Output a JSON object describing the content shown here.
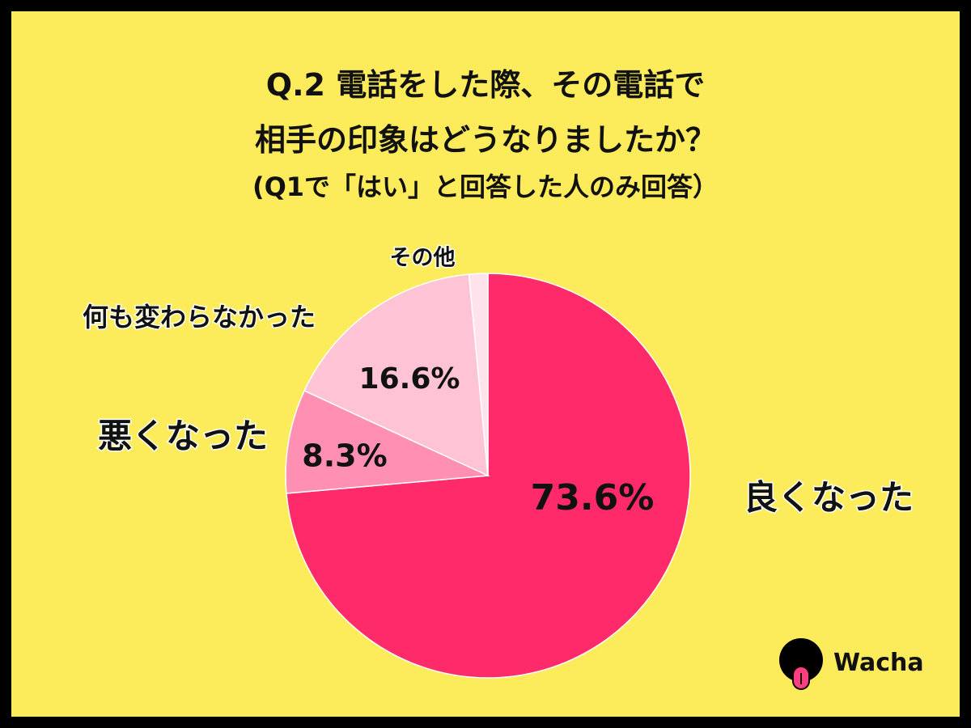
{
  "title": {
    "line1": "Q.2 電話をした際、その電話で",
    "line2": "相手の印象はどうなりましたか？",
    "line3": "(Q1で「はい」と回答した人のみ回答）"
  },
  "chart_data": {
    "type": "pie",
    "categories": [
      "良くなった",
      "悪くなった",
      "何も変わらなかった",
      "その他"
    ],
    "values": [
      73.6,
      8.3,
      16.6,
      1.5
    ],
    "value_labels": [
      "73.6%",
      "8.3%",
      "16.6%",
      ""
    ],
    "colors": [
      "#ff2a6a",
      "#ff90b4",
      "#ffc3d6",
      "#ffe3ec"
    ],
    "start": "12 o'clock",
    "direction": "clockwise"
  },
  "logo": {
    "text": "Wacha"
  },
  "colors": {
    "background": "#fcec5c",
    "border": "#000000"
  }
}
